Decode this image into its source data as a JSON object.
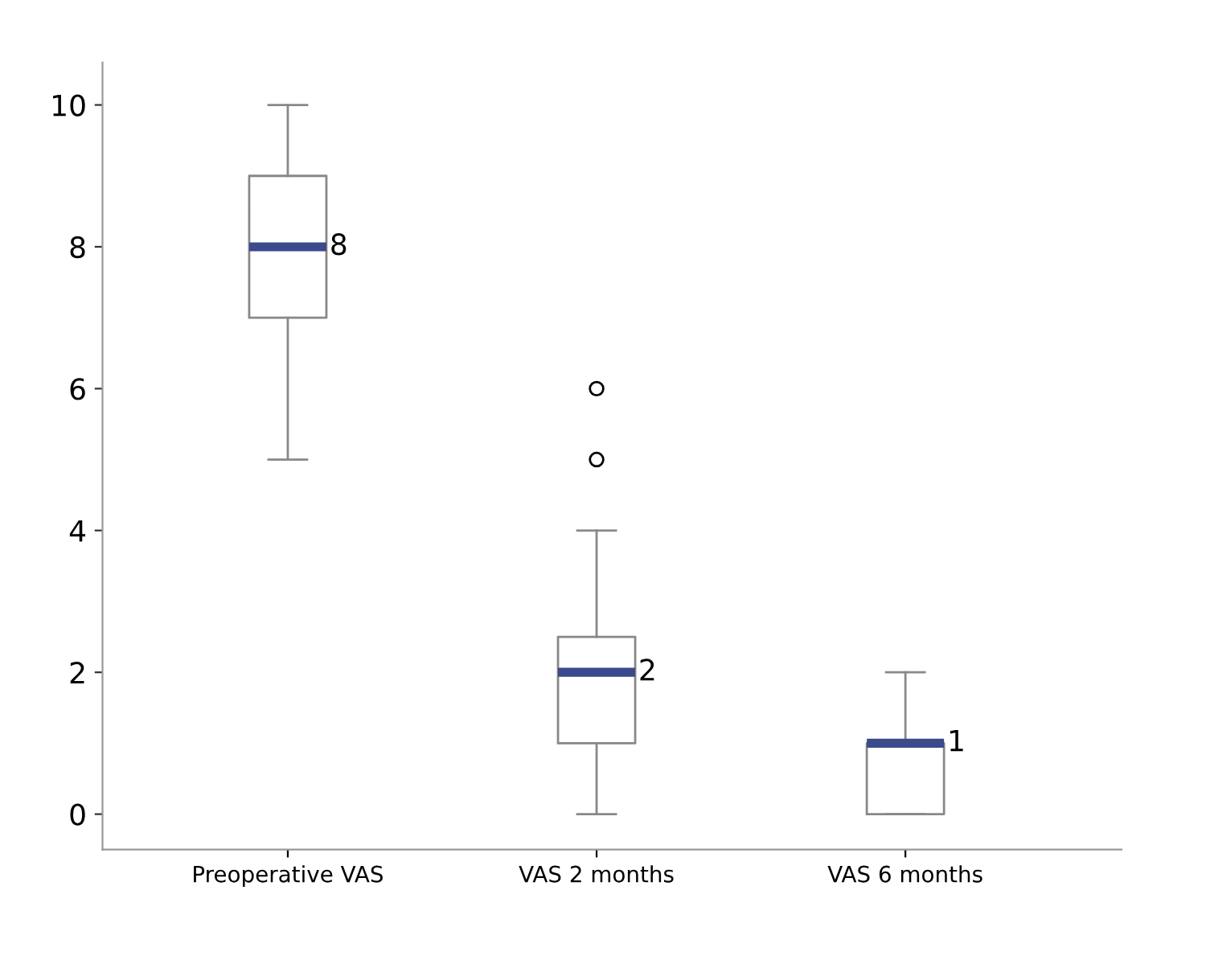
{
  "chart_data": {
    "type": "box",
    "categories": [
      "Preoperative VAS",
      "VAS 2 months",
      "VAS 6 months"
    ],
    "boxes": [
      {
        "low": 5,
        "q1": 7,
        "median": 8,
        "q3": 9,
        "high": 10
      },
      {
        "low": 0,
        "q1": 1,
        "median": 2,
        "q3": 2.5,
        "high": 4,
        "outliers": [
          5,
          6
        ]
      },
      {
        "low": 0,
        "q1": 0,
        "median": 1,
        "q3": 1,
        "high": 2
      }
    ],
    "color": "#888888",
    "ylim": [
      -0.5,
      10.6
    ],
    "yticks": [
      0,
      2,
      4,
      6,
      8,
      10
    ],
    "grid": false,
    "annotations": [
      {
        "text": "8",
        "x": "Preoperative VAS",
        "y": 8
      },
      {
        "text": "2",
        "x": "VAS 2 months",
        "y": 2
      },
      {
        "text": "1",
        "x": "VAS 6 months",
        "y": 1
      }
    ]
  }
}
